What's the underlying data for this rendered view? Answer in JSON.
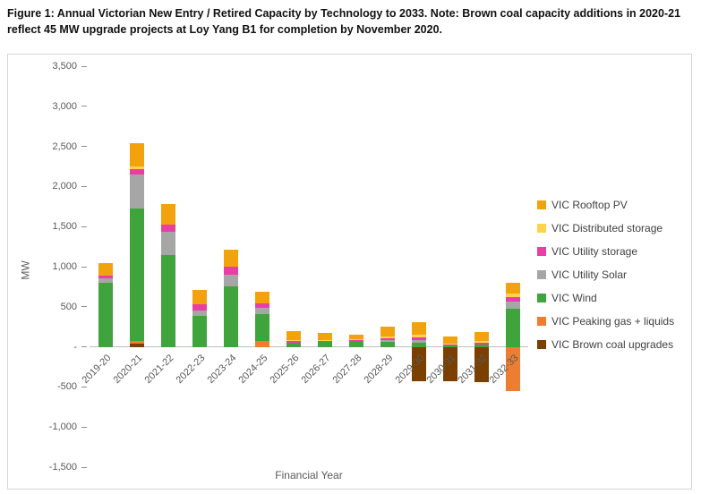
{
  "figure": {
    "title": "Figure 1: Annual Victorian New Entry / Retired Capacity by Technology to 2033. Note: Brown coal capacity additions in 2020-21 reflect 45 MW upgrade projects at Loy Yang B1 for completion by November 2020."
  },
  "chart_data": {
    "type": "bar",
    "stacked": true,
    "title": "",
    "xlabel": "Financial Year",
    "ylabel": "MW",
    "ylim": [
      -1500,
      3500
    ],
    "ytick_interval": 500,
    "ytick_values": [
      3500,
      3000,
      2500,
      2000,
      1500,
      1000,
      500,
      0,
      -500,
      -1000,
      -1500
    ],
    "ytick_labels": [
      "3,500",
      "3,000",
      "2,500",
      "2,000",
      "1,500",
      "1,000",
      "500",
      "-",
      "-500",
      "-1,000",
      "-1,500"
    ],
    "grid": false,
    "legend_position": "right",
    "categories": [
      "2019-20",
      "2020-21",
      "2021-22",
      "2022-23",
      "2023-24",
      "2024-25",
      "2025-26",
      "2026-27",
      "2027-28",
      "2028-29",
      "2029-30",
      "2030-31",
      "2031-32",
      "2032-33"
    ],
    "series": [
      {
        "name": "VIC Rooftop PV",
        "color": "#F2A20D",
        "values": [
          160,
          290,
          250,
          185,
          210,
          150,
          110,
          80,
          60,
          120,
          160,
          90,
          110,
          140
        ]
      },
      {
        "name": "VIC Distributed storage",
        "color": "#FFD34D",
        "values": [
          0,
          40,
          0,
          0,
          0,
          0,
          10,
          10,
          10,
          20,
          30,
          10,
          20,
          40
        ]
      },
      {
        "name": "VIC Utility storage",
        "color": "#E83FA6",
        "values": [
          30,
          60,
          100,
          80,
          100,
          50,
          25,
          20,
          15,
          30,
          40,
          15,
          25,
          60
        ]
      },
      {
        "name": "VIC Utility Solar",
        "color": "#A6A6A6",
        "values": [
          60,
          430,
          290,
          60,
          150,
          80,
          0,
          0,
          0,
          20,
          30,
          0,
          0,
          80
        ]
      },
      {
        "name": "VIC Wind",
        "color": "#3FA43B",
        "values": [
          800,
          1650,
          1140,
          390,
          750,
          340,
          50,
          60,
          70,
          60,
          50,
          20,
          30,
          480
        ]
      },
      {
        "name": "VIC Peaking gas + liquids",
        "color": "#ED7D31",
        "values": [
          0,
          30,
          0,
          0,
          0,
          70,
          0,
          0,
          0,
          0,
          0,
          0,
          0,
          -550
        ]
      },
      {
        "name": "VIC Brown coal upgrades",
        "color": "#7B3F00",
        "values": [
          0,
          45,
          0,
          0,
          0,
          0,
          0,
          0,
          0,
          0,
          -430,
          -430,
          -440,
          0
        ]
      }
    ]
  }
}
